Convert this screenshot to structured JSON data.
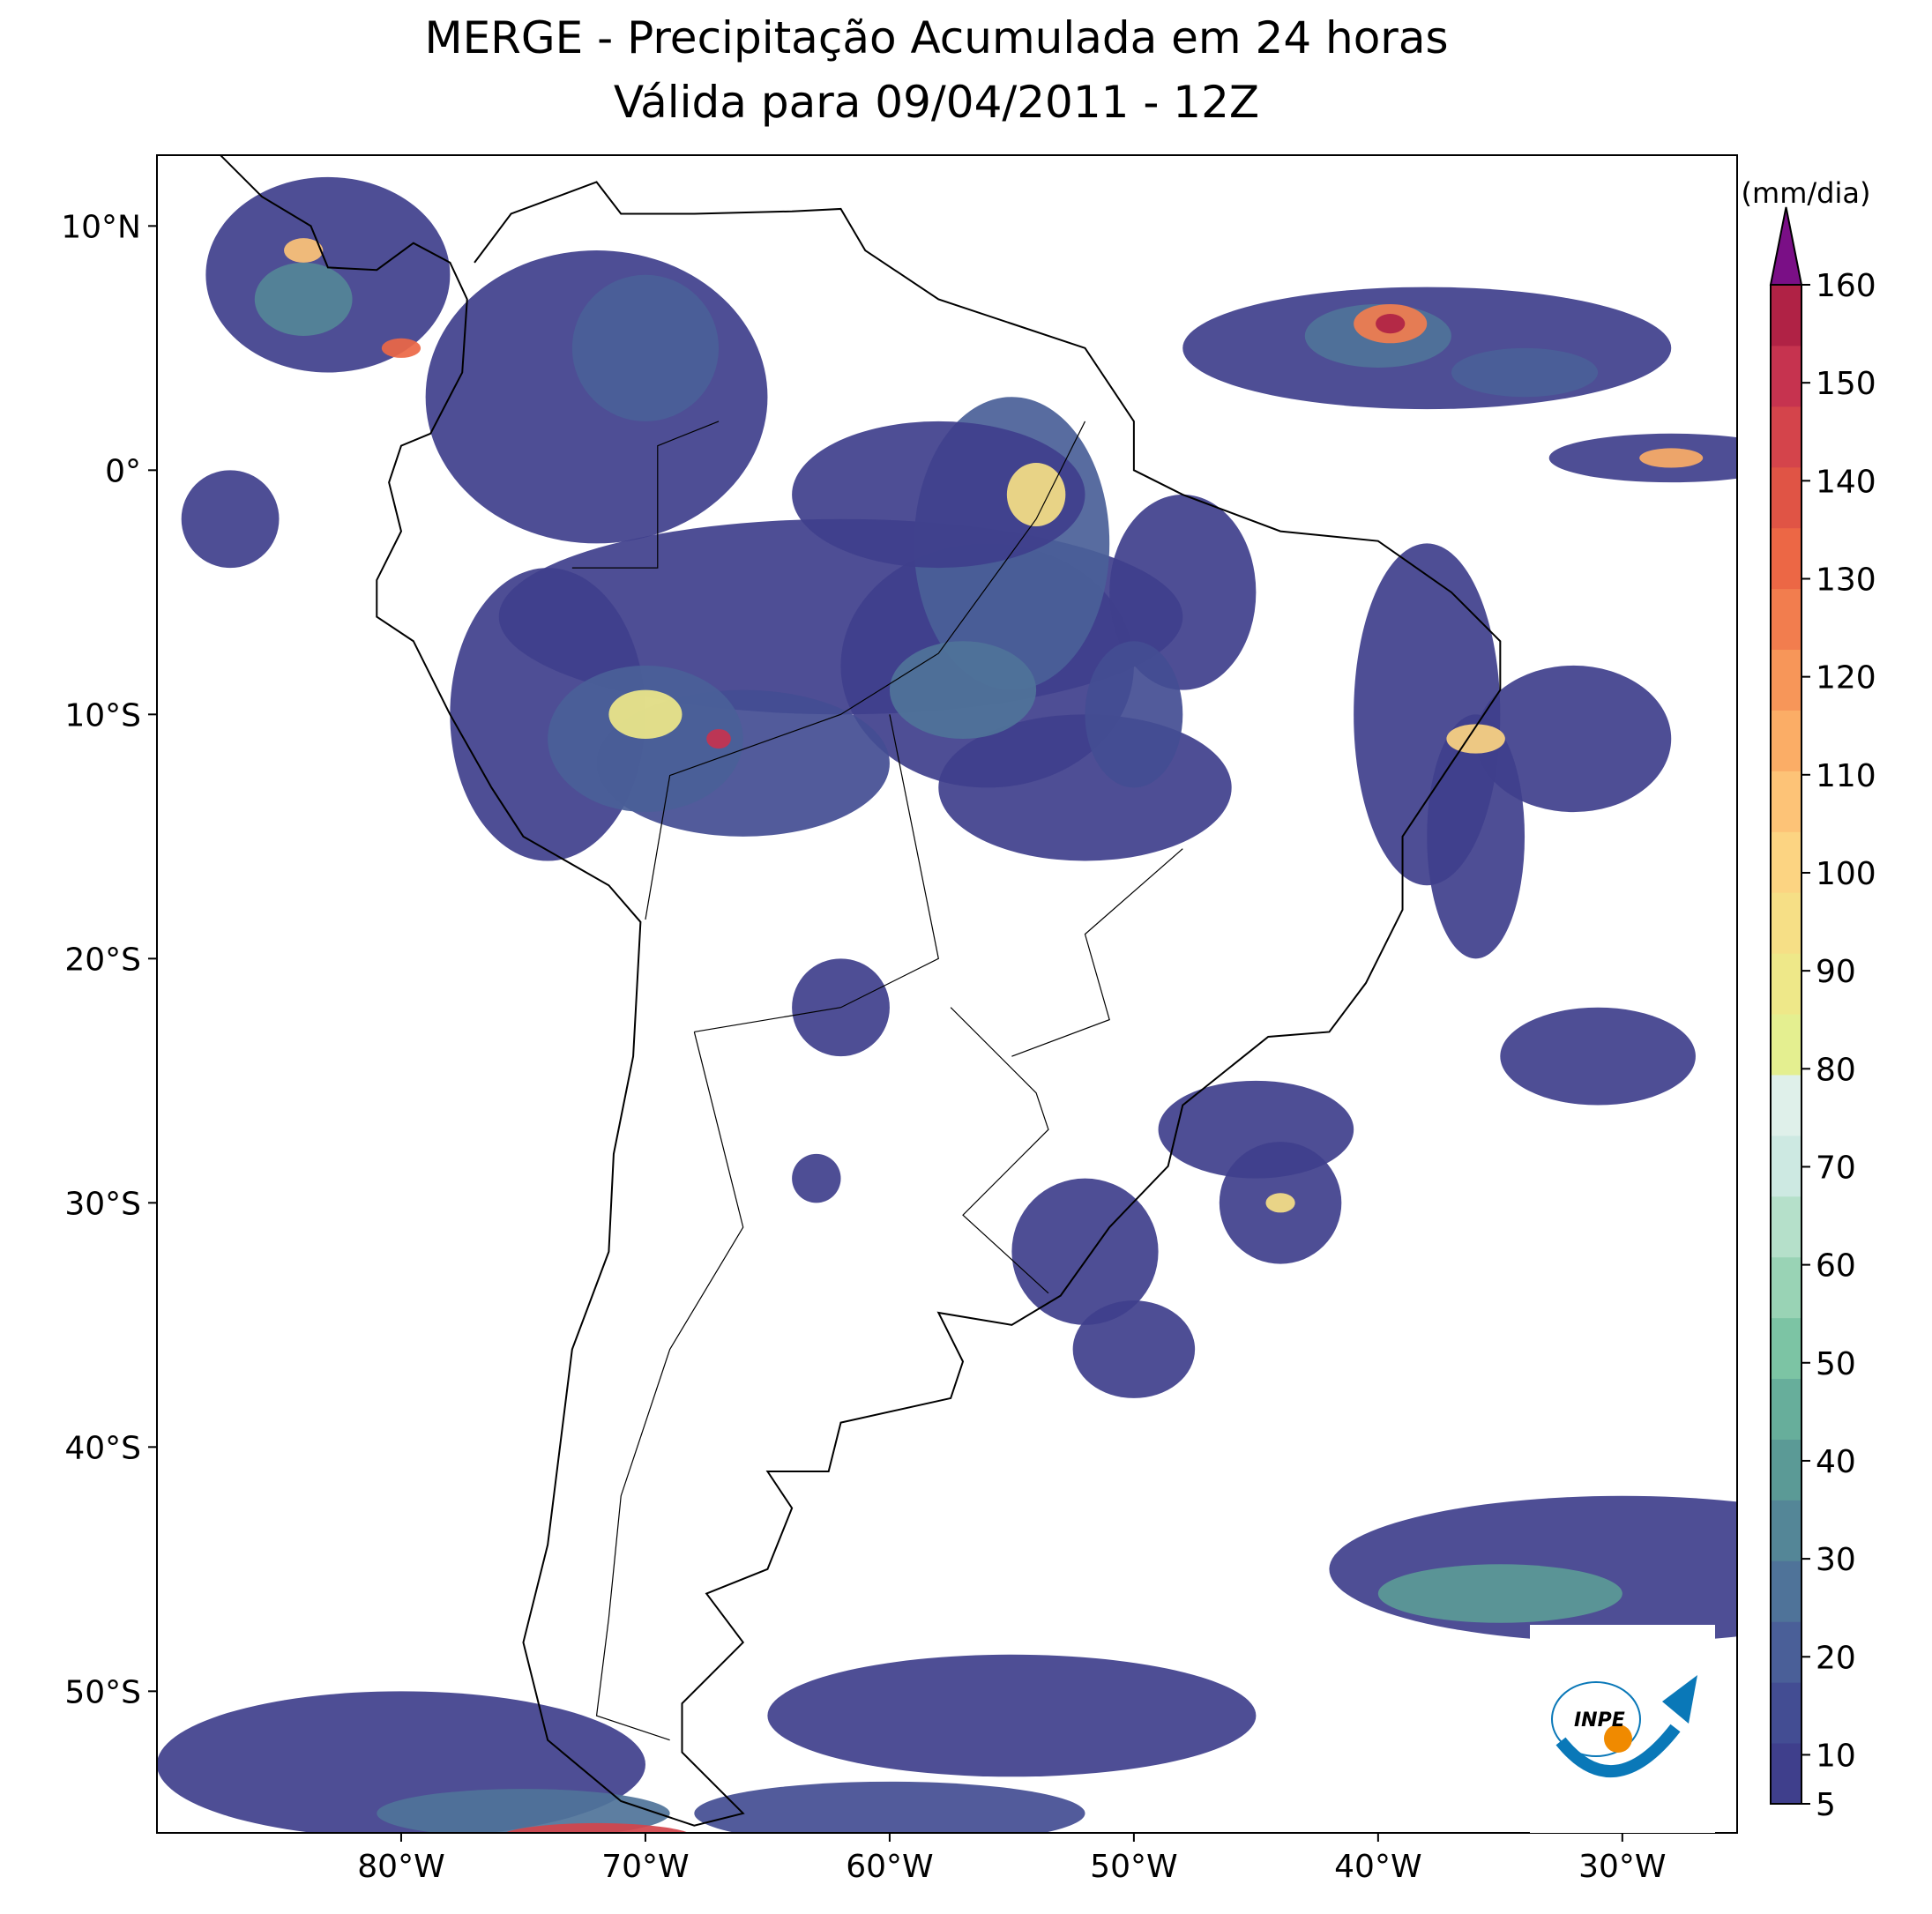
{
  "title": "MERGE - Precipitação Acumulada em 24 horas",
  "subtitle": "Válida para 09/04/2011 - 12Z",
  "map": {
    "xlim": [
      -90,
      -25.3
    ],
    "ylim": [
      -55.8,
      12.9
    ],
    "xticks": [
      {
        "value": -80,
        "label": "80°W"
      },
      {
        "value": -70,
        "label": "70°W"
      },
      {
        "value": -60,
        "label": "60°W"
      },
      {
        "value": -50,
        "label": "50°W"
      },
      {
        "value": -40,
        "label": "40°W"
      },
      {
        "value": -30,
        "label": "30°W"
      }
    ],
    "yticks": [
      {
        "value": 10,
        "label": "10°N"
      },
      {
        "value": 0,
        "label": "0°"
      },
      {
        "value": -10,
        "label": "10°S"
      },
      {
        "value": -20,
        "label": "20°S"
      },
      {
        "value": -30,
        "label": "30°S"
      },
      {
        "value": -40,
        "label": "40°S"
      },
      {
        "value": -50,
        "label": "50°S"
      }
    ]
  },
  "colorbar": {
    "label": "(mm/dia)",
    "lim": [
      5,
      160
    ],
    "ticks": [
      5,
      10,
      20,
      30,
      40,
      50,
      60,
      70,
      80,
      90,
      100,
      110,
      120,
      130,
      140,
      150,
      160
    ],
    "colors": [
      "#3f3f8c",
      "#434d93",
      "#4a5f98",
      "#4f7399",
      "#548697",
      "#5b9a96",
      "#67ae9b",
      "#7cc4a4",
      "#99d3b5",
      "#b5e0ca",
      "#cde9e2",
      "#dff0ea",
      "#e4ef90",
      "#eee889",
      "#f6df86",
      "#fcd482",
      "#fdc377",
      "#fbad66",
      "#f79659",
      "#f27d4e",
      "#ec6745",
      "#e05445",
      "#d4444b",
      "#c6334f",
      "#b02245"
    ],
    "extend_color": "#7a0f86"
  },
  "logo": "INPE"
}
